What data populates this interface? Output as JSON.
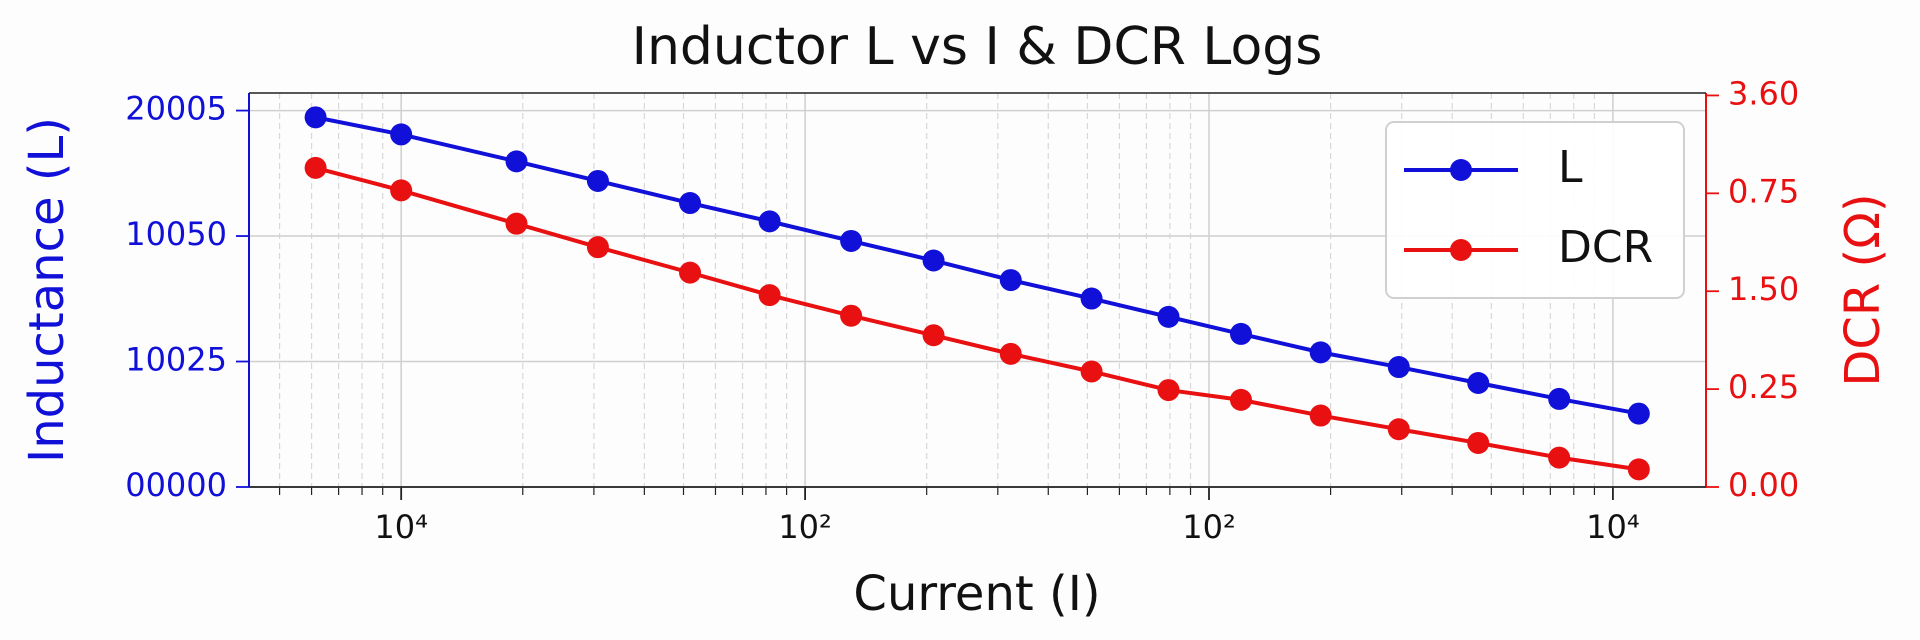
{
  "chart_data": {
    "type": "line",
    "title": "Inductor L vs I & DCR Logs",
    "x_label": "Current (I)",
    "y_label": "Inductance (L)",
    "y2_label": "DCR (Ω)",
    "log_x": true,
    "grid": true,
    "legend": "upper right",
    "x": [
      0.614,
      1,
      1.93,
      3.07,
      5.19,
      8.17,
      13.0,
      20.8,
      32.3,
      51.2,
      79.4,
      120,
      189,
      295,
      464,
      736,
      1159
    ],
    "xlim": [
      0.42,
      1700
    ],
    "xticks": [
      {
        "value": 1,
        "label": "10⁴"
      },
      {
        "value": 10,
        "label": "10²"
      },
      {
        "value": 100,
        "label": "10²"
      },
      {
        "value": 1000,
        "label": "10⁴"
      }
    ],
    "ylim": [
      0,
      3.14
    ],
    "yticks": [
      {
        "value": 0,
        "label": "00000"
      },
      {
        "value": 1,
        "label": "10025"
      },
      {
        "value": 2,
        "label": "10050"
      },
      {
        "value": 3,
        "label": "20005"
      }
    ],
    "y2lim": [
      0,
      4.025
    ],
    "y2ticks": [
      {
        "value": 0,
        "label": "0.00"
      },
      {
        "value": 1,
        "label": "0.25"
      },
      {
        "value": 2,
        "label": "1.50"
      },
      {
        "value": 3,
        "label": "0.75"
      },
      {
        "value": 4,
        "label": "3.60"
      }
    ],
    "series": [
      {
        "name": "L",
        "color": "#1010d8",
        "axis": "y",
        "values": [
          2.946,
          2.81,
          2.595,
          2.439,
          2.263,
          2.117,
          1.961,
          1.805,
          1.649,
          1.502,
          1.356,
          1.22,
          1.073,
          0.956,
          0.829,
          0.702,
          0.585
        ]
      },
      {
        "name": "DCR",
        "color": "#e81010",
        "axis": "y2",
        "values": [
          3.26,
          3.03,
          2.69,
          2.45,
          2.19,
          1.96,
          1.75,
          1.55,
          1.36,
          1.18,
          0.99,
          0.89,
          0.73,
          0.59,
          0.45,
          0.3,
          0.18
        ]
      }
    ]
  }
}
